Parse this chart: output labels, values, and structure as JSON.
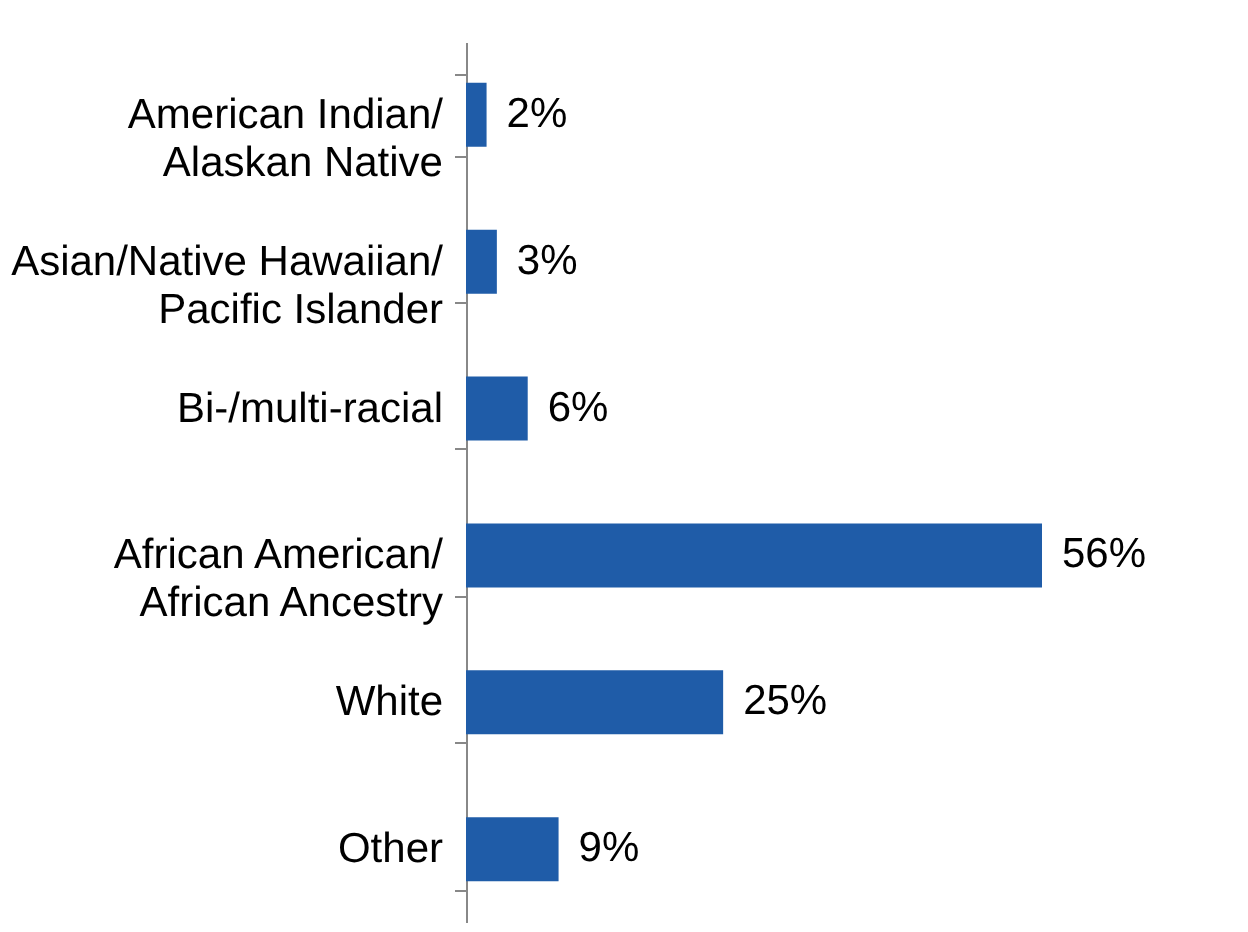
{
  "chart_data": {
    "type": "bar",
    "orientation": "horizontal",
    "categories": [
      "American Indian/\nAlaskan Native",
      "Asian/Native Hawaiian/\nPacific Islander",
      "Bi-/multi-racial",
      "African American/\nAfrican Ancestry",
      "White",
      "Other"
    ],
    "values": [
      2,
      3,
      6,
      56,
      25,
      9
    ],
    "value_labels": [
      "2%",
      "3%",
      "6%",
      "56%",
      "25%",
      "9%"
    ],
    "color": "#1f5ca8",
    "grid": false
  }
}
